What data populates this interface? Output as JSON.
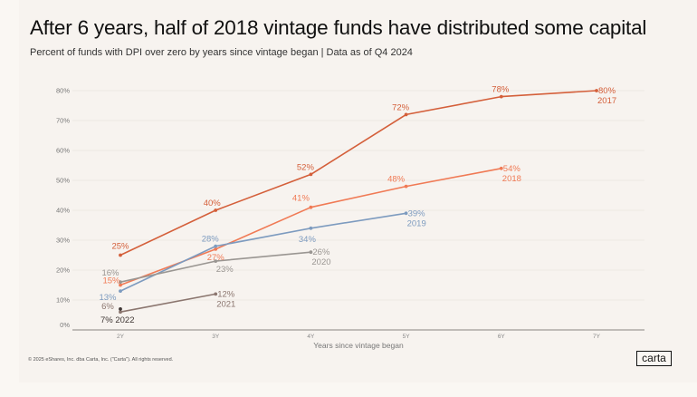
{
  "header": {
    "title": "After 6 years, half of 2018 vintage funds have distributed some capital",
    "subtitle": "Percent of funds with DPI over zero by years since vintage began | Data as of Q4 2024"
  },
  "footer": {
    "copyright": "© 2025 eShares, Inc. dba Carta, Inc. (\"Carta\"). All rights reserved.",
    "logo": "carta"
  },
  "chart_data": {
    "type": "line",
    "title": "After 6 years, half of 2018 vintage funds have distributed some capital",
    "subtitle": "Percent of funds with DPI over zero by years since vintage began | Data as of Q4 2024",
    "xlabel": "Years since vintage began",
    "ylabel": "",
    "categories": [
      "2Y",
      "3Y",
      "4Y",
      "5Y",
      "6Y",
      "7Y"
    ],
    "yticks": [
      "0%",
      "10%",
      "20%",
      "30%",
      "40%",
      "50%",
      "60%",
      "70%",
      "80%"
    ],
    "ylim": [
      0,
      80
    ],
    "grid": true,
    "legend": "inline-end-labels",
    "series": [
      {
        "name": "2017",
        "color": "#d45f3a",
        "values": [
          25,
          40,
          52,
          72,
          78,
          80
        ]
      },
      {
        "name": "2018",
        "color": "#f07a55",
        "values": [
          15,
          27,
          41,
          48,
          54,
          null
        ]
      },
      {
        "name": "2019",
        "color": "#7d9bbf",
        "values": [
          13,
          28,
          34,
          39,
          null,
          null
        ]
      },
      {
        "name": "2020",
        "color": "#9a9692",
        "values": [
          16,
          23,
          26,
          null,
          null,
          null
        ]
      },
      {
        "name": "2021",
        "color": "#8b766f",
        "values": [
          6,
          12,
          null,
          null,
          null,
          null
        ]
      },
      {
        "name": "2022",
        "color": "#3f3735",
        "values": [
          7,
          null,
          null,
          null,
          null,
          null
        ]
      }
    ]
  }
}
